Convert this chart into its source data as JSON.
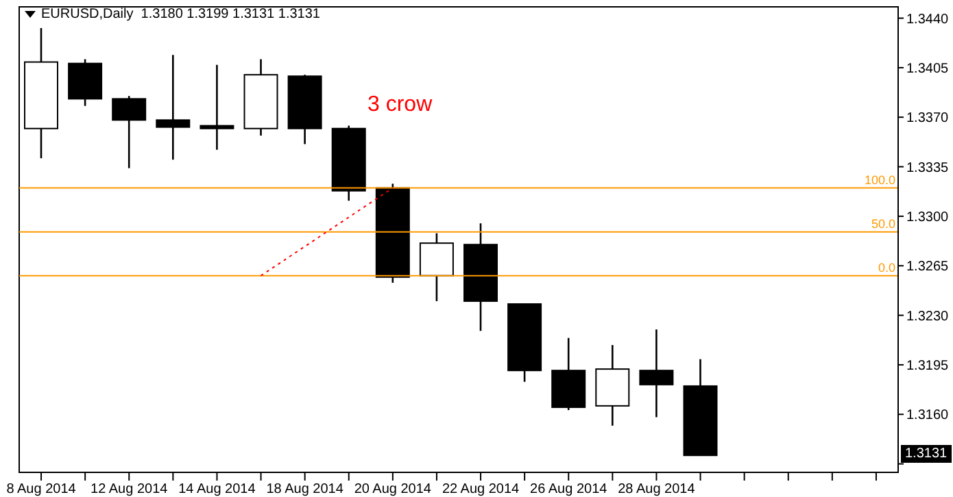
{
  "chart_data": {
    "type": "candlestick",
    "title": "EURUSD,Daily  1.3180 1.3199 1.3131 1.3131",
    "categories": [
      "8 Aug 2014",
      null,
      "12 Aug 2014",
      null,
      "14 Aug 2014",
      null,
      "18 Aug 2014",
      null,
      "20 Aug 2014",
      null,
      "22 Aug 2014",
      null,
      "26 Aug 2014",
      null,
      "28 Aug 2014",
      null,
      null,
      null,
      null,
      null
    ],
    "ohlc": [
      [
        1.3362,
        1.3433,
        1.3341,
        1.3409
      ],
      [
        1.3408,
        1.3411,
        1.3378,
        1.3383
      ],
      [
        1.3383,
        1.3385,
        1.3334,
        1.3368
      ],
      [
        1.3368,
        1.3414,
        1.334,
        1.3363
      ],
      [
        1.3364,
        1.3407,
        1.3347,
        1.3362
      ],
      [
        1.3362,
        1.3411,
        1.3357,
        1.34
      ],
      [
        1.3399,
        1.34,
        1.3351,
        1.3362
      ],
      [
        1.3362,
        1.3364,
        1.3311,
        1.3318
      ],
      [
        1.332,
        1.3323,
        1.3253,
        1.3257
      ],
      [
        1.3258,
        1.3288,
        1.324,
        1.3281
      ],
      [
        1.328,
        1.3295,
        1.3219,
        1.324
      ],
      [
        1.3238,
        1.3238,
        1.3183,
        1.3191
      ],
      [
        1.3191,
        1.3214,
        1.3163,
        1.3165
      ],
      [
        1.3166,
        1.3209,
        1.3152,
        1.3192
      ],
      [
        1.3191,
        1.322,
        1.3158,
        1.3181
      ],
      [
        1.318,
        1.3199,
        1.3131,
        1.3131
      ],
      null,
      null,
      null,
      null
    ],
    "colors": [
      "#ffffff",
      "#000000",
      "#000000",
      "#000000",
      "#000000",
      "#ffffff",
      "#000000",
      "#000000",
      "#000000",
      "#ffffff",
      "#000000",
      "#000000",
      "#000000",
      "#ffffff",
      "#000000",
      "#000000",
      null,
      null,
      null,
      null
    ],
    "series": [
      {
        "type": "line",
        "color": "#ff0000",
        "line_style": "dotted",
        "marker": "none",
        "values": [
          null,
          null,
          null,
          null,
          null,
          1.3258,
          null,
          null,
          1.332,
          null,
          null,
          null,
          null,
          null,
          null,
          null,
          null,
          null,
          null,
          null
        ]
      }
    ],
    "ylim": [
      1.3119,
      1.3448
    ],
    "yticks": [
      {
        "value": 1.3125,
        "label": null
      },
      {
        "value": 1.316,
        "label": "1.3160"
      },
      {
        "value": 1.3195,
        "label": "1.3195"
      },
      {
        "value": 1.323,
        "label": "1.3230"
      },
      {
        "value": 1.3265,
        "label": "1.3265"
      },
      {
        "value": 1.33,
        "label": "1.3300"
      },
      {
        "value": 1.3335,
        "label": "1.3335"
      },
      {
        "value": 1.337,
        "label": "1.3370"
      },
      {
        "value": 1.3405,
        "label": "1.3405"
      },
      {
        "value": 1.344,
        "label": "1.3440"
      }
    ],
    "ref_lines": [
      {
        "axis": "y",
        "value": 1.332,
        "color": "#ff9900"
      },
      {
        "axis": "y",
        "value": 1.3289,
        "color": "#ff9900"
      },
      {
        "axis": "y",
        "value": 1.3258,
        "color": "#ff9900"
      }
    ],
    "annotations": [
      "3 crow",
      "1.3131",
      {
        "text": "100.0",
        "y": 1.332
      },
      {
        "text": "50.0",
        "y": 1.3289
      },
      {
        "text": "0.0",
        "y": 1.3258
      }
    ]
  }
}
